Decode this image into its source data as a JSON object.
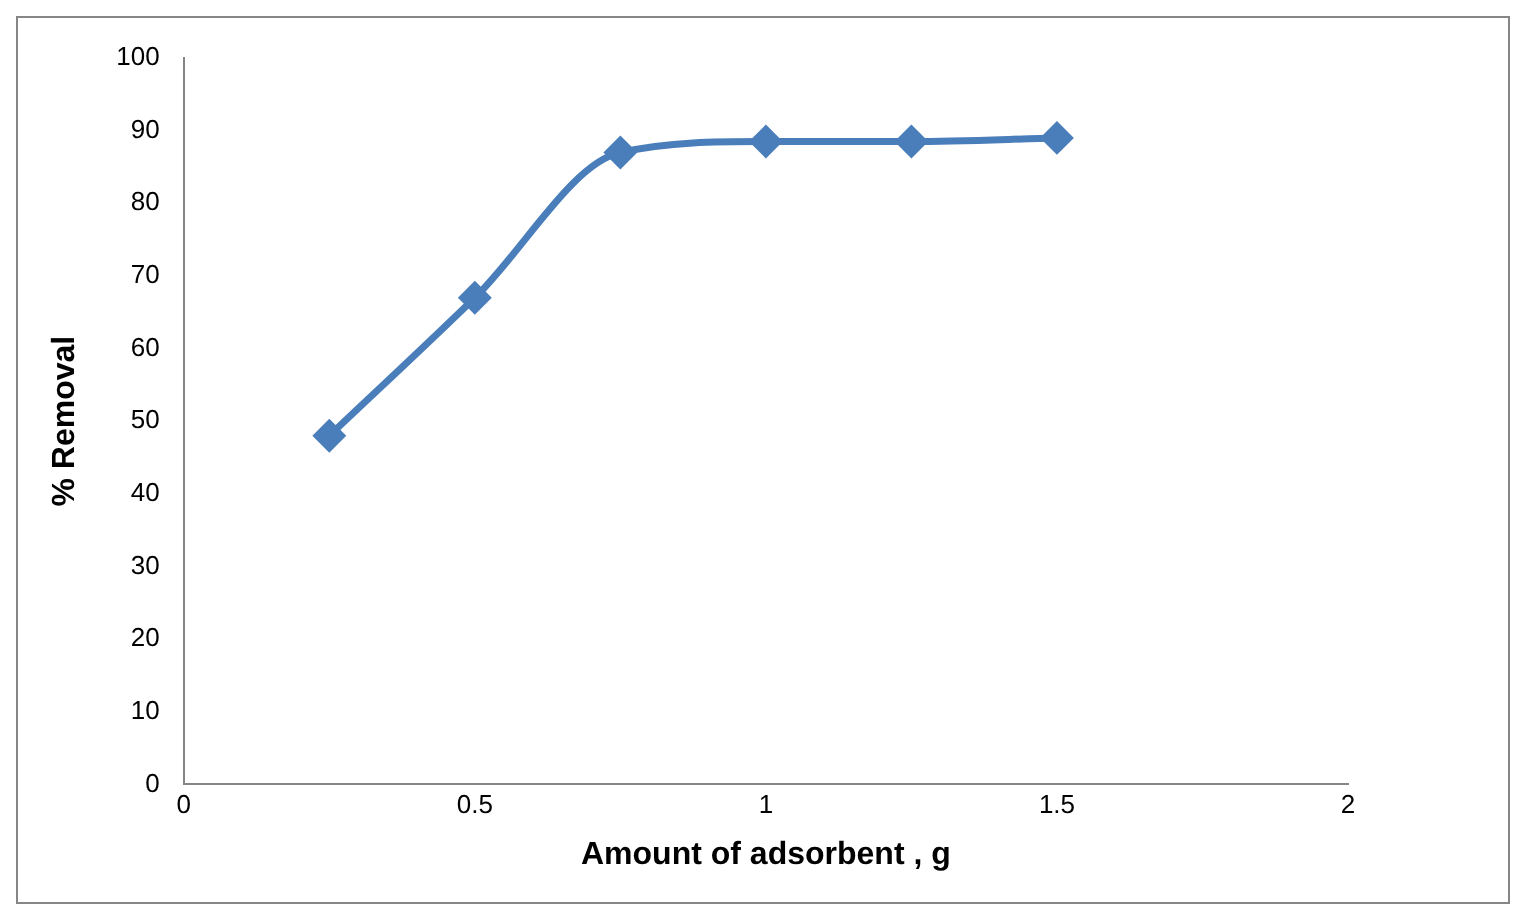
{
  "chart_data": {
    "type": "line",
    "xlabel": "Amount of adsorbent , g",
    "ylabel": "% Removal",
    "series": [
      {
        "color": "#4a7ebb",
        "x": [
          0.25,
          0.5,
          0.75,
          1,
          1.25,
          1.5
        ],
        "values": [
          48,
          67,
          87,
          88.5,
          88.5,
          89
        ]
      }
    ],
    "xlim": [
      0,
      2
    ],
    "xticks": [
      0,
      0.5,
      1,
      1.5,
      2
    ],
    "ylim": [
      0,
      100
    ],
    "yticks": [
      0,
      10,
      20,
      30,
      40,
      50,
      60,
      70,
      80,
      90,
      100
    ],
    "grid": false,
    "legend": false,
    "marker": "diamond",
    "line_style": "solid"
  }
}
